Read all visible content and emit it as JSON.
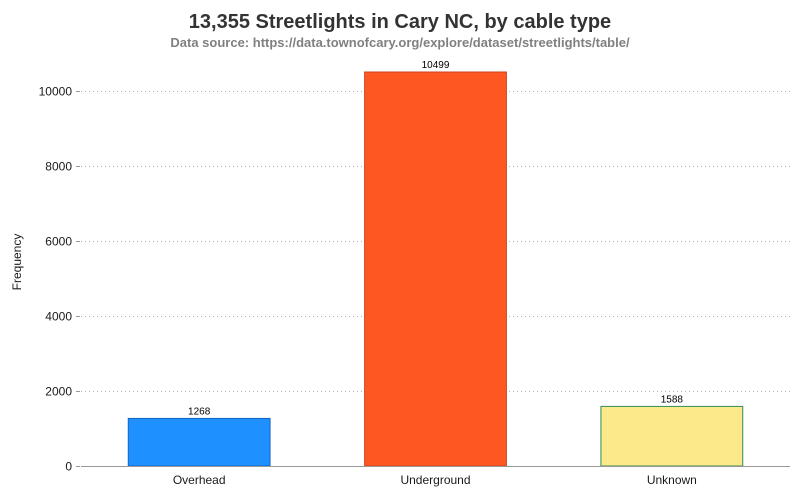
{
  "chart_data": {
    "type": "bar",
    "title": "13,355 Streetlights in Cary NC, by cable type",
    "subtitle": "Data source: https://data.townofcary.org/explore/dataset/streetlights/table/",
    "xlabel": "",
    "ylabel": "Frequency",
    "categories": [
      "Overhead",
      "Underground",
      "Unknown"
    ],
    "values": [
      1268,
      10499,
      1588
    ],
    "data_labels": [
      "1268",
      "10499",
      "1588"
    ],
    "bar_colors": [
      "#1e90ff",
      "#ff5722",
      "#fce98a"
    ],
    "bar_borders": [
      "#1565c0",
      "#c8461c",
      "#2e8b57"
    ],
    "ylim": [
      0,
      10499
    ],
    "yticks": [
      0,
      2000,
      4000,
      6000,
      8000,
      10000
    ],
    "grid": true,
    "legend": "none"
  }
}
